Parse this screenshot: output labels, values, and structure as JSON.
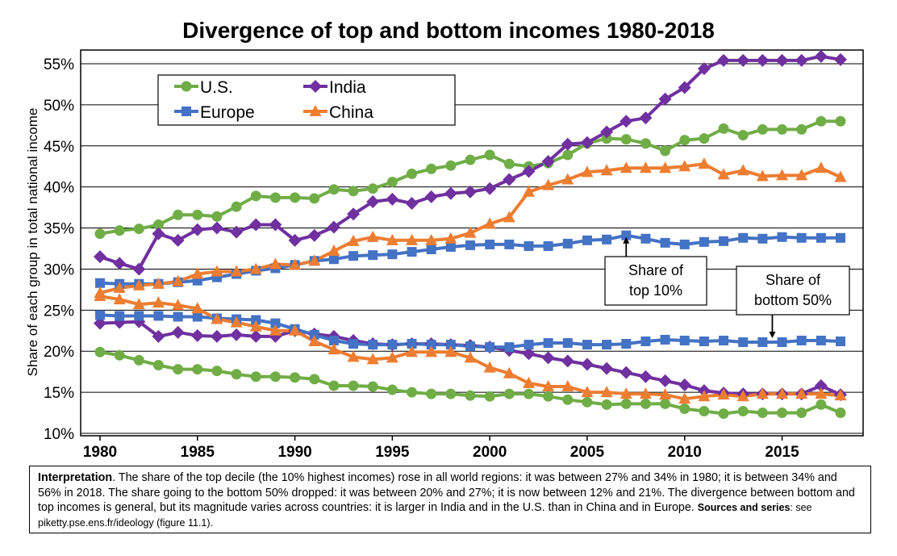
{
  "chart_data": {
    "type": "line",
    "title": "Divergence of top and bottom incomes 1980-2018",
    "ylabel": "Share of each group in total national income",
    "xlabel": "",
    "xlim": [
      1980,
      2018
    ],
    "ylim": [
      10,
      56
    ],
    "x_ticks": [
      "1980",
      "1985",
      "1990",
      "1995",
      "2000",
      "2005",
      "2010",
      "2015"
    ],
    "y_ticks": [
      "10%",
      "15%",
      "20%",
      "25%",
      "30%",
      "35%",
      "40%",
      "45%",
      "50%",
      "55%"
    ],
    "grid": true,
    "legend_position": "top-left",
    "legend": [
      "U.S.",
      "India",
      "Europe",
      "China"
    ],
    "series": [
      {
        "name": "U.S.",
        "group": "top",
        "color": "#70AD47",
        "marker": "circle",
        "x_start": 1980,
        "values": [
          34.3,
          34.7,
          34.9,
          35.4,
          36.6,
          36.6,
          36.4,
          37.6,
          38.9,
          38.7,
          38.7,
          38.6,
          39.7,
          39.5,
          39.8,
          40.6,
          41.6,
          42.2,
          42.6,
          43.3,
          43.9,
          42.8,
          42.5,
          42.9,
          43.9,
          45.3,
          45.9,
          45.8,
          45.3,
          44.4,
          45.7,
          45.9,
          47.1,
          46.3,
          47.0,
          47.0,
          47.0,
          48.0,
          48.0
        ]
      },
      {
        "name": "India",
        "group": "top",
        "color": "#7030A0",
        "marker": "diamond",
        "x_start": 1980,
        "values": [
          31.5,
          30.7,
          30.0,
          34.3,
          33.5,
          34.8,
          35.0,
          34.5,
          35.4,
          35.4,
          33.5,
          34.1,
          35.1,
          36.7,
          38.2,
          38.5,
          38.0,
          38.8,
          39.2,
          39.4,
          39.8,
          40.9,
          41.9,
          43.1,
          45.2,
          45.4,
          46.7,
          48.0,
          48.4,
          50.7,
          52.1,
          54.4,
          55.4,
          55.4,
          55.4,
          55.4,
          55.4,
          55.9,
          55.5
        ]
      },
      {
        "name": "Europe",
        "group": "top",
        "color": "#4472C4",
        "marker": "square",
        "x_start": 1980,
        "values": [
          28.3,
          28.2,
          28.2,
          28.2,
          28.4,
          28.6,
          29.0,
          29.4,
          29.8,
          30.1,
          30.5,
          31.0,
          31.2,
          31.6,
          31.7,
          31.8,
          32.1,
          32.4,
          32.7,
          32.9,
          33.0,
          33.0,
          32.8,
          32.8,
          33.1,
          33.5,
          33.6,
          34.1,
          33.7,
          33.2,
          33.0,
          33.3,
          33.4,
          33.8,
          33.7,
          33.9,
          33.8,
          33.8,
          33.8
        ]
      },
      {
        "name": "China",
        "group": "top",
        "color": "#ED7D31",
        "marker": "triangle",
        "x_start": 1980,
        "values": [
          27.1,
          27.7,
          28.0,
          28.2,
          28.5,
          29.4,
          29.7,
          29.7,
          30.0,
          30.6,
          30.5,
          31.0,
          32.2,
          33.4,
          33.9,
          33.5,
          33.5,
          33.5,
          33.7,
          34.4,
          35.5,
          36.3,
          39.4,
          40.2,
          40.9,
          41.8,
          42.0,
          42.3,
          42.3,
          42.3,
          42.5,
          42.8,
          41.5,
          42.0,
          41.3,
          41.4,
          41.4,
          42.3,
          41.2
        ]
      },
      {
        "name": "U.S.",
        "group": "bottom",
        "color": "#70AD47",
        "marker": "circle",
        "x_start": 1980,
        "values": [
          19.9,
          19.5,
          18.9,
          18.3,
          17.8,
          17.8,
          17.6,
          17.2,
          16.9,
          16.9,
          16.8,
          16.6,
          15.8,
          15.8,
          15.7,
          15.3,
          15.0,
          14.8,
          14.8,
          14.6,
          14.5,
          14.8,
          14.8,
          14.5,
          14.1,
          13.8,
          13.5,
          13.6,
          13.6,
          13.6,
          13.0,
          12.7,
          12.4,
          12.7,
          12.5,
          12.5,
          12.5,
          13.5,
          12.5
        ]
      },
      {
        "name": "India",
        "group": "bottom",
        "color": "#7030A0",
        "marker": "diamond",
        "x_start": 1980,
        "values": [
          23.4,
          23.5,
          23.6,
          21.8,
          22.3,
          21.9,
          21.8,
          22.0,
          21.8,
          21.8,
          22.5,
          22.1,
          21.8,
          21.3,
          20.9,
          20.8,
          20.9,
          20.9,
          20.8,
          20.7,
          20.5,
          20.1,
          19.7,
          19.2,
          18.8,
          18.4,
          17.9,
          17.4,
          16.9,
          16.4,
          15.9,
          15.2,
          14.9,
          14.8,
          14.8,
          14.8,
          14.8,
          15.8,
          14.7
        ]
      },
      {
        "name": "Europe",
        "group": "bottom",
        "color": "#4472C4",
        "marker": "square",
        "x_start": 1980,
        "values": [
          24.4,
          24.3,
          24.3,
          24.3,
          24.2,
          24.2,
          24.0,
          23.9,
          23.8,
          23.4,
          22.7,
          22.0,
          21.3,
          20.9,
          20.8,
          20.8,
          20.9,
          20.8,
          20.8,
          20.6,
          20.5,
          20.5,
          20.8,
          21.0,
          21.0,
          20.8,
          20.8,
          20.9,
          21.2,
          21.4,
          21.3,
          21.2,
          21.3,
          21.1,
          21.1,
          21.1,
          21.3,
          21.3,
          21.2
        ]
      },
      {
        "name": "China",
        "group": "bottom",
        "color": "#ED7D31",
        "marker": "triangle",
        "x_start": 1980,
        "values": [
          26.7,
          26.3,
          25.7,
          25.9,
          25.6,
          25.2,
          23.9,
          23.5,
          23.0,
          22.5,
          22.5,
          21.2,
          20.2,
          19.3,
          19.0,
          19.2,
          19.9,
          19.9,
          19.9,
          19.2,
          18.0,
          17.3,
          16.1,
          15.7,
          15.7,
          15.0,
          15.0,
          14.8,
          14.8,
          14.7,
          14.2,
          14.5,
          14.7,
          14.5,
          14.8,
          14.8,
          14.8,
          14.8,
          14.6
        ]
      }
    ],
    "annotations": [
      {
        "lines": [
          "Share of",
          "top 10%"
        ],
        "target_x": 2007,
        "target_y": 34.1
      },
      {
        "lines": [
          "Share of",
          "bottom 50%"
        ],
        "target_x": 2014.5,
        "target_y": 21.4
      }
    ]
  },
  "note": {
    "label": "Interpretation",
    "text": ". The share of the top decile (the 10% highest incomes) rose in all world regions: it was between 27% and 34% in 1980; it is between 34% and 56% in 2018. The share going to the bottom 50% dropped: it was between 20% and 27%; it is now between 12% and 21%. The divergence between bottom and top incomes is general, but its magnitude varies across countries: it is larger in India and in the U.S. than in China and in Europe. ",
    "sources_label": "Sources and series",
    "sources_text": ": see piketty.pse.ens.fr/ideology (figure 11.1)."
  }
}
